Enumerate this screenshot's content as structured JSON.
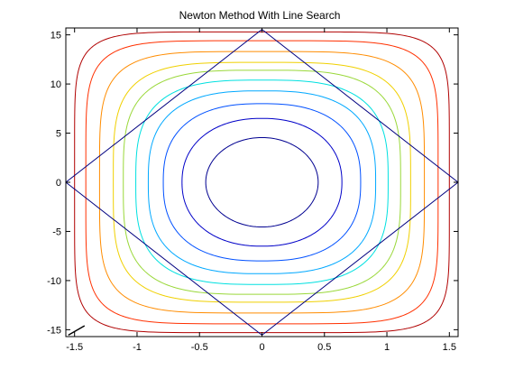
{
  "chart_data": {
    "type": "contour",
    "title": "Newton Method With Line Search",
    "xlabel": "",
    "ylabel": "",
    "xlim": [
      -1.57,
      1.57
    ],
    "ylim": [
      -15.7,
      15.7
    ],
    "x_ticks": [
      -1.5,
      -1,
      -0.5,
      0,
      0.5,
      1,
      1.5
    ],
    "x_tick_labels": [
      "-1.5",
      "-1",
      "-0.5",
      "0",
      "0.5",
      "1",
      "1.5"
    ],
    "y_ticks": [
      -15,
      -10,
      -5,
      0,
      5,
      10,
      15
    ],
    "y_tick_labels": [
      "-15",
      "-10",
      "-5",
      "0",
      "5",
      "10",
      "15"
    ],
    "grid": false,
    "contours": [
      {
        "level": 1,
        "color": "#000090",
        "semi_x": 0.45,
        "semi_y": 4.55,
        "exponent": 2.0
      },
      {
        "level": 2,
        "color": "#0000c8",
        "semi_x": 0.64,
        "semi_y": 6.5,
        "exponent": 2.2
      },
      {
        "level": 3,
        "color": "#0050ff",
        "semi_x": 0.79,
        "semi_y": 8.0,
        "exponent": 2.5
      },
      {
        "level": 4,
        "color": "#00a8ff",
        "semi_x": 0.91,
        "semi_y": 9.3,
        "exponent": 2.8
      },
      {
        "level": 5,
        "color": "#00e0e0",
        "semi_x": 1.01,
        "semi_y": 10.4,
        "exponent": 3.1
      },
      {
        "level": 6,
        "color": "#9ad83a",
        "semi_x": 1.11,
        "semi_y": 11.4,
        "exponent": 3.5
      },
      {
        "level": 7,
        "color": "#f0d000",
        "semi_x": 1.19,
        "semi_y": 12.2,
        "exponent": 3.9
      },
      {
        "level": 8,
        "color": "#ff8c00",
        "semi_x": 1.3,
        "semi_y": 13.3,
        "exponent": 4.6
      },
      {
        "level": 9,
        "color": "#ff3000",
        "semi_x": 1.41,
        "semi_y": 14.4,
        "exponent": 5.6
      },
      {
        "level": 10,
        "color": "#b00000",
        "semi_x": 1.5,
        "semi_y": 15.3,
        "exponent": 6.8
      }
    ],
    "path": {
      "color": "#000080",
      "points": [
        [
          1.57,
          0
        ],
        [
          0,
          15.55
        ],
        [
          -1.57,
          0
        ],
        [
          0,
          -15.55
        ],
        [
          1.57,
          0
        ]
      ]
    },
    "start_marker": {
      "color": "#000000",
      "points": [
        [
          -1.55,
          -15.55
        ],
        [
          -1.42,
          -14.6
        ]
      ]
    }
  }
}
